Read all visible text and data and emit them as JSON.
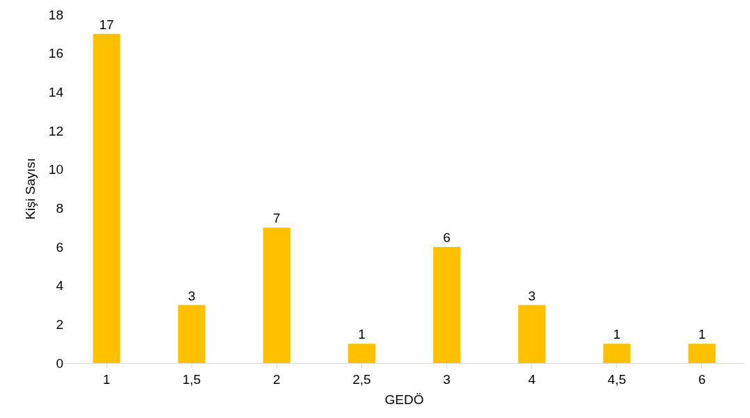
{
  "chart_data": {
    "type": "bar",
    "xlabel": "GEDÖ",
    "ylabel": "Kişi Sayısı",
    "categories": [
      "1",
      "1,5",
      "2",
      "2,5",
      "3",
      "4",
      "4,5",
      "6"
    ],
    "values": [
      17,
      3,
      7,
      1,
      6,
      3,
      1,
      1
    ],
    "color": "#ffc000",
    "ylim": [
      0,
      18
    ],
    "yticks": [
      0,
      2,
      4,
      6,
      8,
      10,
      12,
      14,
      16,
      18
    ],
    "data_labels": true
  }
}
